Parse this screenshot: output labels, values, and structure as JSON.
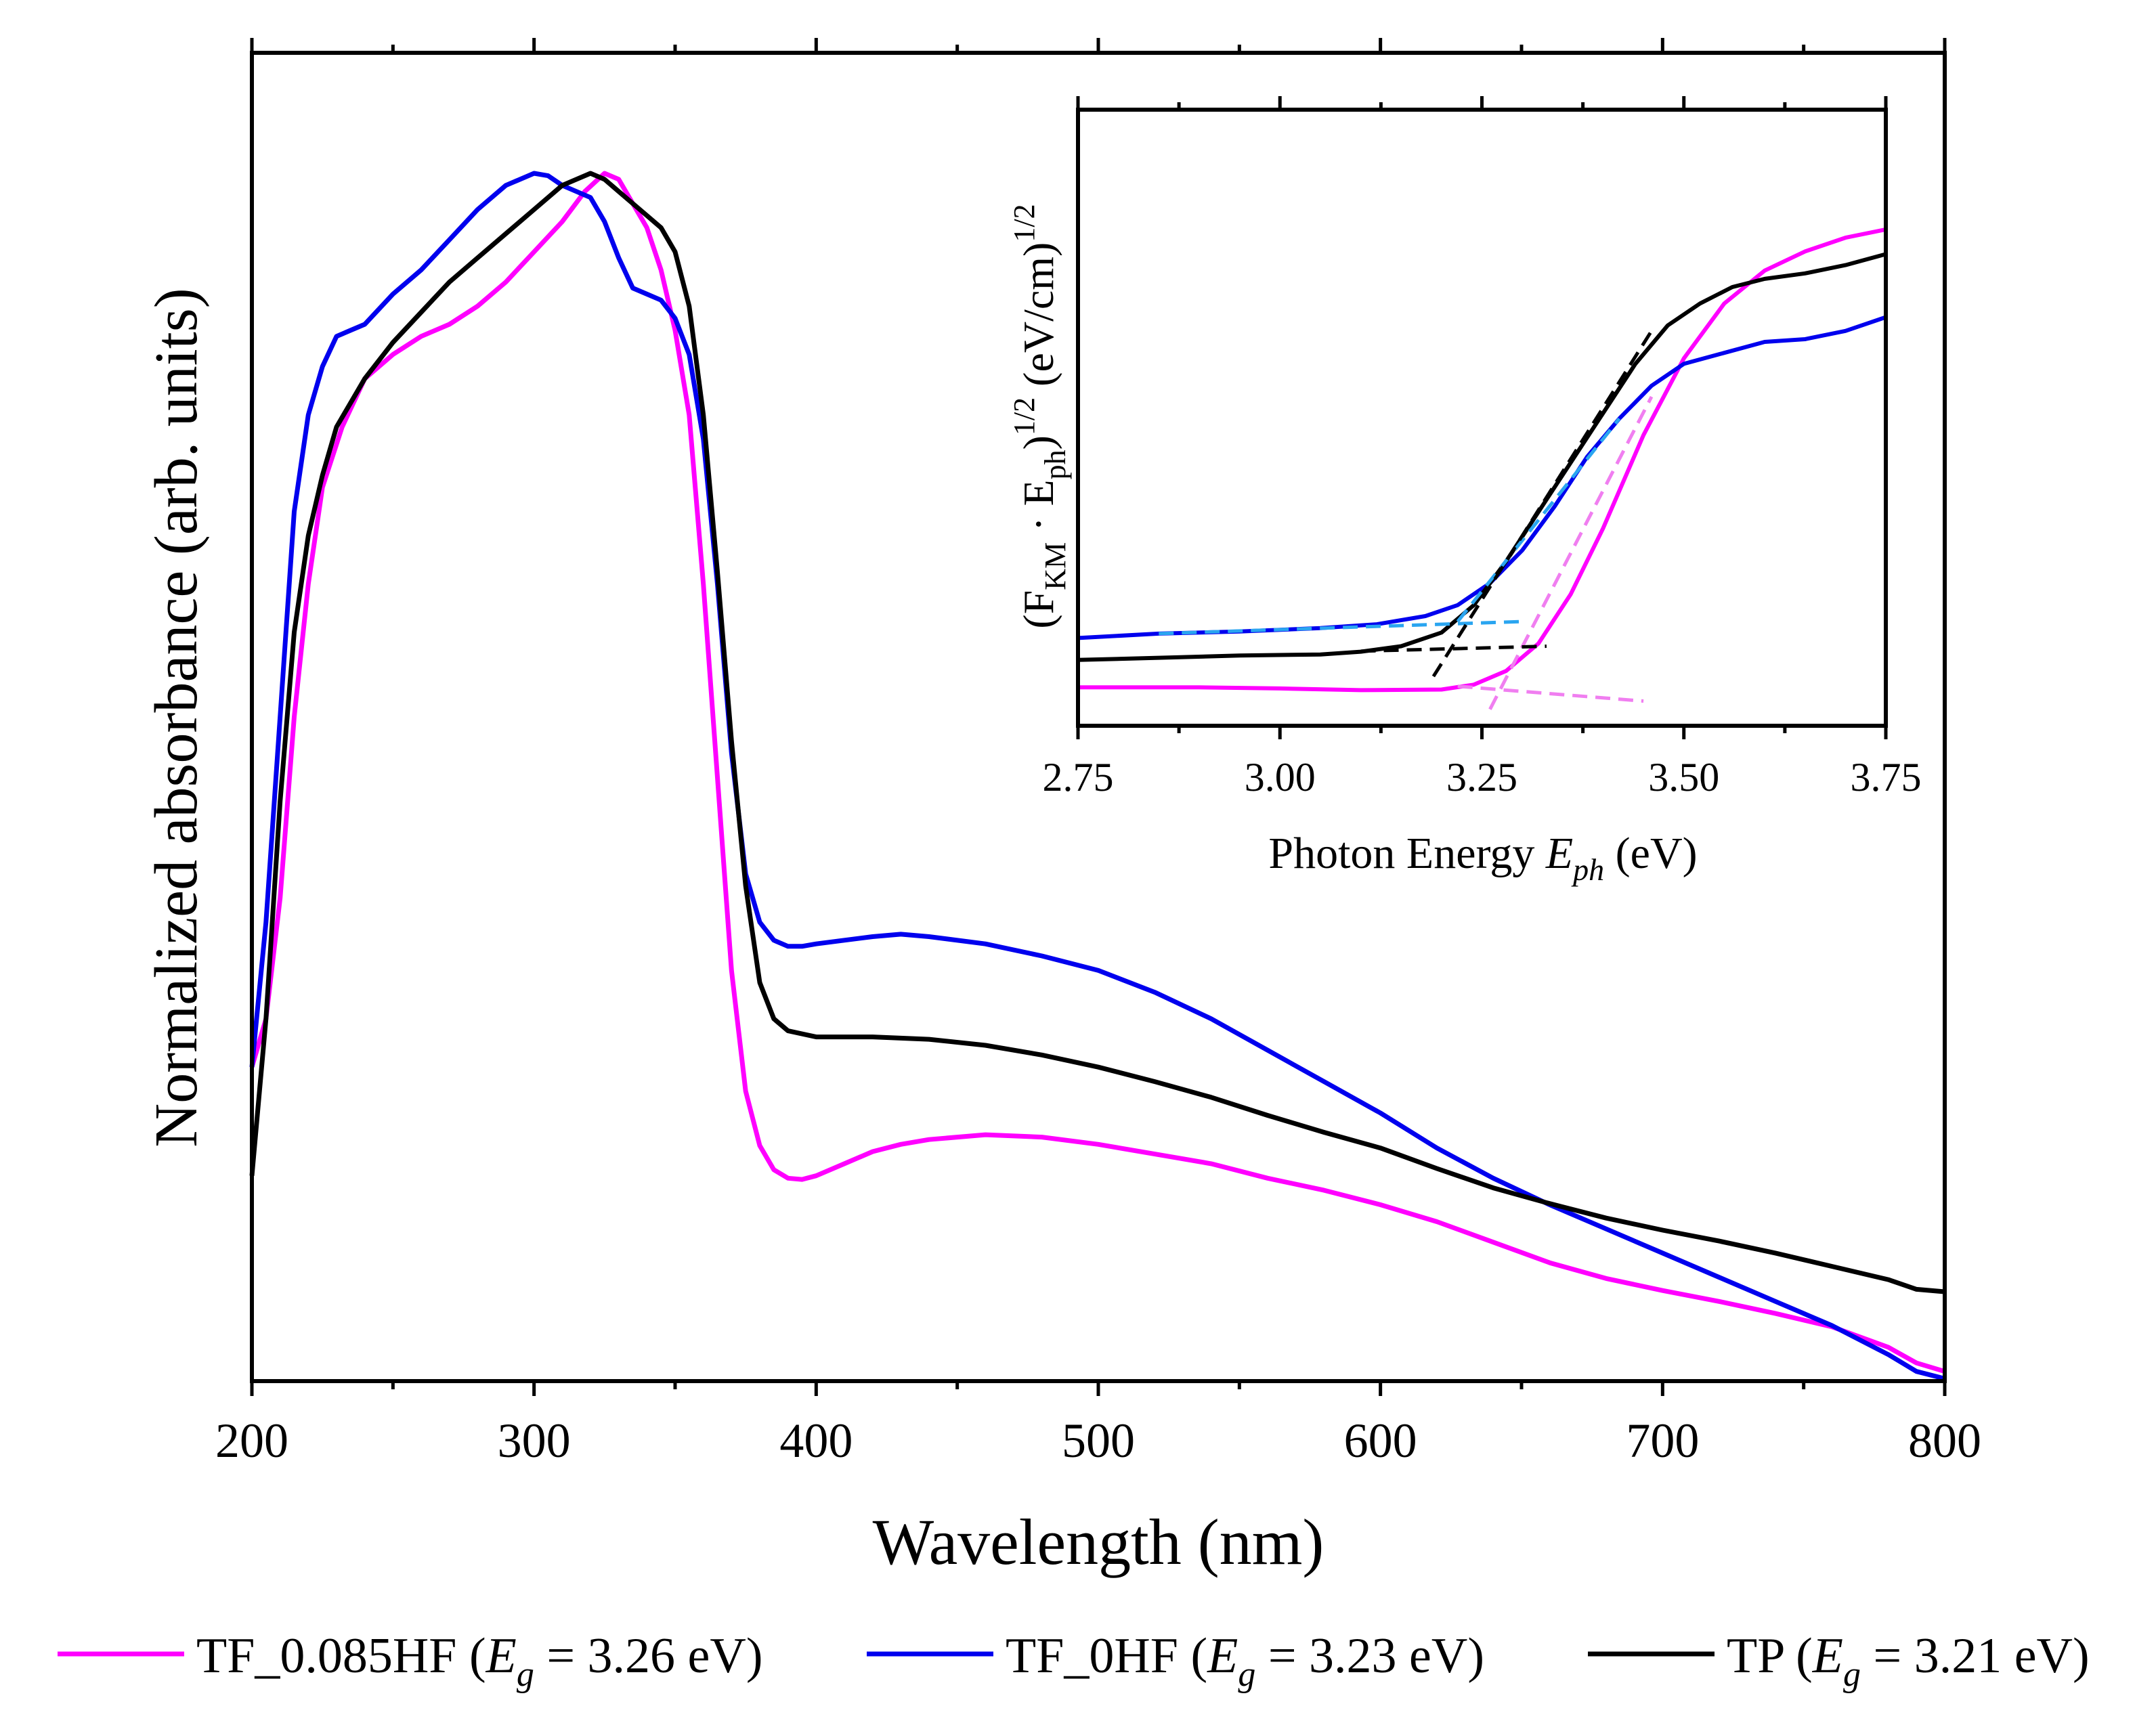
{
  "colors": {
    "magenta": "#ff00ff",
    "blue": "#0000ee",
    "black": "#000000",
    "light_blue": "#2aa5f0",
    "pink_fit": "#f07ef0"
  },
  "chart_data": [
    {
      "id": "main",
      "type": "line",
      "title": "",
      "xlabel": "Wavelength (nm)",
      "ylabel": "Normalized absorbance (arb. units)",
      "xlim": [
        200,
        800
      ],
      "ylim": [
        0,
        1
      ],
      "xticks": [
        200,
        300,
        400,
        500,
        600,
        700,
        800
      ],
      "xtick_labels": [
        "200",
        "300",
        "400",
        "500",
        "600",
        "700",
        "800"
      ],
      "yticks_labeled": false,
      "series": [
        {
          "name": "TF_0.085HF",
          "color": "#ff00ff",
          "points": [
            [
              200,
              0.26
            ],
            [
              205,
              0.3
            ],
            [
              210,
              0.4
            ],
            [
              215,
              0.55
            ],
            [
              220,
              0.66
            ],
            [
              225,
              0.74
            ],
            [
              232,
              0.79
            ],
            [
              240,
              0.83
            ],
            [
              250,
              0.85
            ],
            [
              260,
              0.865
            ],
            [
              270,
              0.875
            ],
            [
              280,
              0.89
            ],
            [
              290,
              0.91
            ],
            [
              300,
              0.935
            ],
            [
              310,
              0.96
            ],
            [
              318,
              0.985
            ],
            [
              325,
              1.0
            ],
            [
              330,
              0.995
            ],
            [
              335,
              0.975
            ],
            [
              340,
              0.955
            ],
            [
              345,
              0.92
            ],
            [
              350,
              0.87
            ],
            [
              355,
              0.8
            ],
            [
              360,
              0.66
            ],
            [
              365,
              0.5
            ],
            [
              370,
              0.34
            ],
            [
              375,
              0.24
            ],
            [
              380,
              0.195
            ],
            [
              385,
              0.175
            ],
            [
              390,
              0.168
            ],
            [
              395,
              0.167
            ],
            [
              400,
              0.17
            ],
            [
              410,
              0.18
            ],
            [
              420,
              0.19
            ],
            [
              430,
              0.196
            ],
            [
              440,
              0.2
            ],
            [
              460,
              0.204
            ],
            [
              480,
              0.202
            ],
            [
              500,
              0.196
            ],
            [
              520,
              0.188
            ],
            [
              540,
              0.18
            ],
            [
              560,
              0.168
            ],
            [
              580,
              0.158
            ],
            [
              600,
              0.146
            ],
            [
              620,
              0.132
            ],
            [
              640,
              0.115
            ],
            [
              660,
              0.098
            ],
            [
              680,
              0.085
            ],
            [
              700,
              0.075
            ],
            [
              720,
              0.066
            ],
            [
              740,
              0.056
            ],
            [
              760,
              0.045
            ],
            [
              780,
              0.028
            ],
            [
              790,
              0.015
            ],
            [
              800,
              0.008
            ]
          ]
        },
        {
          "name": "TF_0HF",
          "color": "#0000ee",
          "points": [
            [
              200,
              0.26
            ],
            [
              205,
              0.38
            ],
            [
              210,
              0.55
            ],
            [
              215,
              0.72
            ],
            [
              220,
              0.8
            ],
            [
              225,
              0.84
            ],
            [
              230,
              0.865
            ],
            [
              235,
              0.87
            ],
            [
              240,
              0.875
            ],
            [
              250,
              0.9
            ],
            [
              260,
              0.92
            ],
            [
              270,
              0.945
            ],
            [
              280,
              0.97
            ],
            [
              290,
              0.99
            ],
            [
              300,
              1.0
            ],
            [
              305,
              0.998
            ],
            [
              310,
              0.99
            ],
            [
              315,
              0.985
            ],
            [
              320,
              0.98
            ],
            [
              325,
              0.96
            ],
            [
              330,
              0.93
            ],
            [
              335,
              0.905
            ],
            [
              340,
              0.9
            ],
            [
              345,
              0.895
            ],
            [
              350,
              0.88
            ],
            [
              355,
              0.85
            ],
            [
              360,
              0.78
            ],
            [
              365,
              0.66
            ],
            [
              370,
              0.52
            ],
            [
              375,
              0.42
            ],
            [
              380,
              0.38
            ],
            [
              385,
              0.365
            ],
            [
              390,
              0.36
            ],
            [
              395,
              0.36
            ],
            [
              400,
              0.362
            ],
            [
              410,
              0.365
            ],
            [
              420,
              0.368
            ],
            [
              430,
              0.37
            ],
            [
              440,
              0.368
            ],
            [
              460,
              0.362
            ],
            [
              480,
              0.352
            ],
            [
              500,
              0.34
            ],
            [
              520,
              0.322
            ],
            [
              540,
              0.3
            ],
            [
              560,
              0.274
            ],
            [
              580,
              0.248
            ],
            [
              600,
              0.222
            ],
            [
              620,
              0.193
            ],
            [
              640,
              0.168
            ],
            [
              660,
              0.146
            ],
            [
              680,
              0.126
            ],
            [
              700,
              0.106
            ],
            [
              720,
              0.086
            ],
            [
              740,
              0.066
            ],
            [
              760,
              0.046
            ],
            [
              780,
              0.022
            ],
            [
              790,
              0.008
            ],
            [
              800,
              0.002
            ]
          ]
        },
        {
          "name": "TP",
          "color": "#000000",
          "points": [
            [
              200,
              0.17
            ],
            [
              205,
              0.3
            ],
            [
              210,
              0.48
            ],
            [
              215,
              0.62
            ],
            [
              220,
              0.7
            ],
            [
              225,
              0.75
            ],
            [
              230,
              0.79
            ],
            [
              240,
              0.83
            ],
            [
              250,
              0.86
            ],
            [
              260,
              0.885
            ],
            [
              270,
              0.91
            ],
            [
              280,
              0.93
            ],
            [
              290,
              0.95
            ],
            [
              300,
              0.97
            ],
            [
              310,
              0.99
            ],
            [
              320,
              1.0
            ],
            [
              325,
              0.995
            ],
            [
              330,
              0.985
            ],
            [
              335,
              0.975
            ],
            [
              340,
              0.965
            ],
            [
              345,
              0.955
            ],
            [
              350,
              0.935
            ],
            [
              355,
              0.89
            ],
            [
              360,
              0.8
            ],
            [
              365,
              0.67
            ],
            [
              370,
              0.53
            ],
            [
              375,
              0.41
            ],
            [
              380,
              0.33
            ],
            [
              385,
              0.3
            ],
            [
              390,
              0.29
            ],
            [
              400,
              0.285
            ],
            [
              420,
              0.285
            ],
            [
              440,
              0.283
            ],
            [
              460,
              0.278
            ],
            [
              480,
              0.27
            ],
            [
              500,
              0.26
            ],
            [
              520,
              0.248
            ],
            [
              540,
              0.235
            ],
            [
              560,
              0.22
            ],
            [
              580,
              0.206
            ],
            [
              600,
              0.193
            ],
            [
              620,
              0.176
            ],
            [
              640,
              0.16
            ],
            [
              660,
              0.147
            ],
            [
              680,
              0.135
            ],
            [
              700,
              0.125
            ],
            [
              720,
              0.116
            ],
            [
              740,
              0.106
            ],
            [
              760,
              0.095
            ],
            [
              780,
              0.084
            ],
            [
              790,
              0.076
            ],
            [
              800,
              0.074
            ]
          ]
        }
      ],
      "legend": {
        "position": "bottom",
        "entries": [
          {
            "series": "TF_0.085HF",
            "label_pre": "TF_0.085HF (",
            "label_var": "E",
            "label_sub": "g",
            "label_post": " = 3.26 eV)"
          },
          {
            "series": "TF_0HF",
            "label_pre": "TF_0HF (",
            "label_var": "E",
            "label_sub": "g",
            "label_post": " = 3.23 eV)"
          },
          {
            "series": "TP",
            "label_pre": "TP (",
            "label_var": "E",
            "label_sub": "g",
            "label_post": " = 3.21 eV)"
          }
        ]
      }
    },
    {
      "id": "inset",
      "type": "line",
      "title": "",
      "xlabel_pre": "Photon Energy ",
      "xlabel_var": "E",
      "xlabel_sub": "ph",
      "xlabel_post": " (eV)",
      "ylabel_parts": [
        "(F",
        "KM",
        " · E",
        "ph",
        ")",
        "1/2",
        " (eV/cm)",
        "1/2"
      ],
      "xlim": [
        2.75,
        3.75
      ],
      "ylim": [
        0,
        1
      ],
      "xticks": [
        2.75,
        3.0,
        3.25,
        3.5,
        3.75
      ],
      "xtick_labels": [
        "2.75",
        "3.00",
        "3.25",
        "3.50",
        "3.75"
      ],
      "series": [
        {
          "name": "TF_0.085HF",
          "color": "#ff00ff",
          "points": [
            [
              2.75,
              0.07
            ],
            [
              2.9,
              0.07
            ],
            [
              3.0,
              0.068
            ],
            [
              3.1,
              0.065
            ],
            [
              3.2,
              0.066
            ],
            [
              3.24,
              0.075
            ],
            [
              3.28,
              0.1
            ],
            [
              3.32,
              0.15
            ],
            [
              3.36,
              0.24
            ],
            [
              3.4,
              0.36
            ],
            [
              3.45,
              0.53
            ],
            [
              3.5,
              0.67
            ],
            [
              3.55,
              0.77
            ],
            [
              3.6,
              0.83
            ],
            [
              3.65,
              0.865
            ],
            [
              3.7,
              0.89
            ],
            [
              3.75,
              0.905
            ]
          ]
        },
        {
          "name": "TF_0HF",
          "color": "#0000ee",
          "points": [
            [
              2.75,
              0.16
            ],
            [
              2.85,
              0.168
            ],
            [
              2.95,
              0.172
            ],
            [
              3.05,
              0.178
            ],
            [
              3.12,
              0.185
            ],
            [
              3.18,
              0.2
            ],
            [
              3.22,
              0.22
            ],
            [
              3.26,
              0.26
            ],
            [
              3.3,
              0.32
            ],
            [
              3.34,
              0.4
            ],
            [
              3.38,
              0.49
            ],
            [
              3.42,
              0.56
            ],
            [
              3.46,
              0.62
            ],
            [
              3.5,
              0.66
            ],
            [
              3.55,
              0.68
            ],
            [
              3.6,
              0.7
            ],
            [
              3.65,
              0.705
            ],
            [
              3.7,
              0.72
            ],
            [
              3.75,
              0.745
            ]
          ]
        },
        {
          "name": "TP",
          "color": "#000000",
          "points": [
            [
              2.75,
              0.12
            ],
            [
              2.85,
              0.124
            ],
            [
              2.95,
              0.128
            ],
            [
              3.05,
              0.13
            ],
            [
              3.1,
              0.135
            ],
            [
              3.15,
              0.145
            ],
            [
              3.2,
              0.17
            ],
            [
              3.24,
              0.22
            ],
            [
              3.28,
              0.3
            ],
            [
              3.32,
              0.39
            ],
            [
              3.36,
              0.48
            ],
            [
              3.4,
              0.57
            ],
            [
              3.44,
              0.66
            ],
            [
              3.48,
              0.73
            ],
            [
              3.52,
              0.77
            ],
            [
              3.56,
              0.8
            ],
            [
              3.6,
              0.815
            ],
            [
              3.65,
              0.825
            ],
            [
              3.7,
              0.84
            ],
            [
              3.75,
              0.86
            ]
          ]
        }
      ],
      "fit_lines": [
        {
          "series": "TF_0.085HF",
          "color": "#f07ef0",
          "from": [
            3.22,
            0.072
          ],
          "to": [
            3.45,
            0.045
          ]
        },
        {
          "series": "TF_0.085HF",
          "color": "#f07ef0",
          "from": [
            3.26,
            0.03
          ],
          "to": [
            3.46,
            0.6
          ]
        },
        {
          "series": "TF_0HF",
          "color": "#2aa5f0",
          "from": [
            2.85,
            0.168
          ],
          "to": [
            3.3,
            0.19
          ]
        },
        {
          "series": "TF_0HF",
          "color": "#2aa5f0",
          "from": [
            3.22,
            0.19
          ],
          "to": [
            3.42,
            0.56
          ]
        },
        {
          "series": "TP",
          "color": "#000000",
          "from": [
            3.1,
            0.136
          ],
          "to": [
            3.33,
            0.145
          ]
        },
        {
          "series": "TP",
          "color": "#000000",
          "from": [
            3.19,
            0.09
          ],
          "to": [
            3.46,
            0.72
          ]
        }
      ]
    }
  ]
}
